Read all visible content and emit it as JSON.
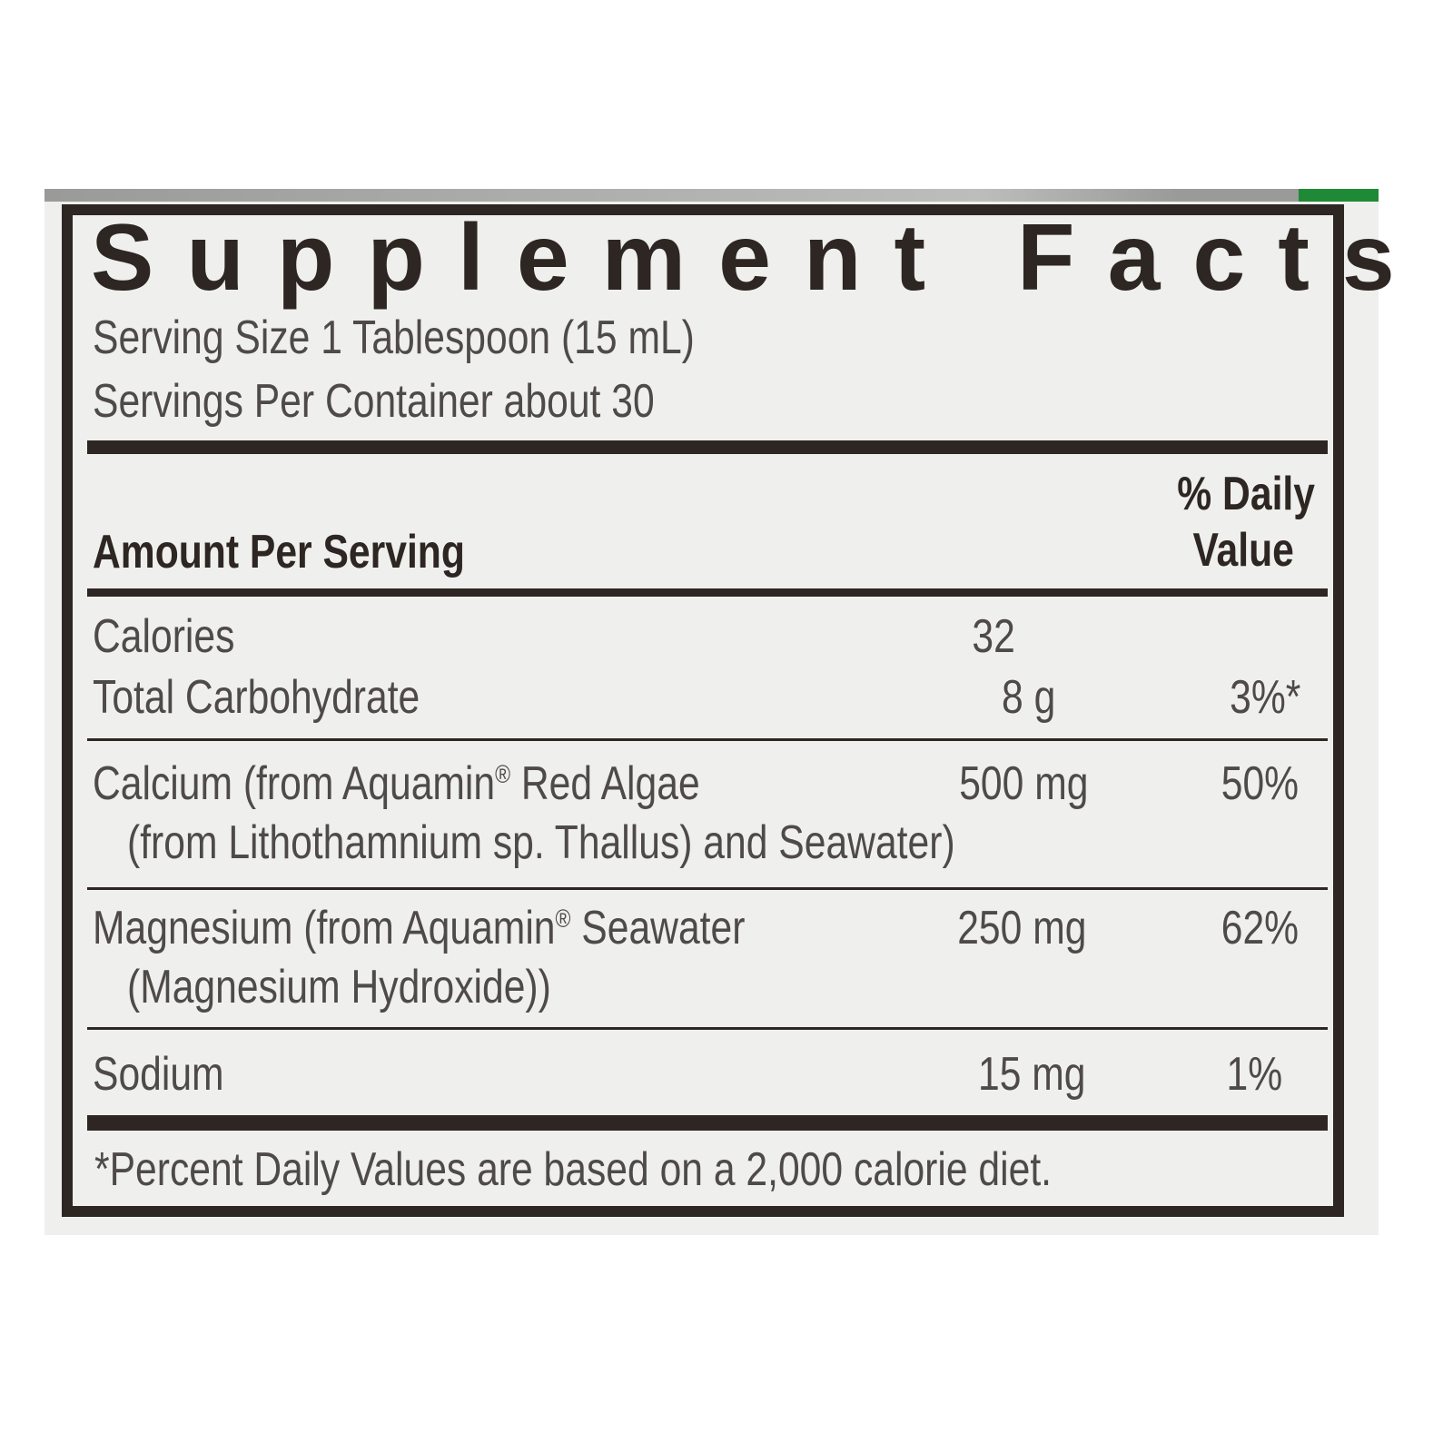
{
  "title": "Supplement Facts",
  "serving_size": "Serving Size 1 Tablespoon (15 mL)",
  "servings_per_container": "Servings Per Container about 30",
  "header": {
    "amount_per_serving": "Amount Per Serving",
    "dv_line1": "% Daily",
    "dv_line2": "Value"
  },
  "rows": [
    {
      "name": "Calories",
      "amount": "32",
      "dv": ""
    },
    {
      "name": "Total Carbohydrate",
      "amount": "8 g",
      "dv": "3%*"
    },
    {
      "name_a": "Calcium (from Aquamin",
      "reg": "®",
      "name_b": " Red Algae",
      "name_line2": "(from Lithothamnium sp. Thallus) and Seawater)",
      "amount": "500 mg",
      "dv": "50%"
    },
    {
      "name_a": "Magnesium (from Aquamin",
      "reg": "®",
      "name_b": " Seawater",
      "name_line2": "(Magnesium Hydroxide))",
      "amount": "250 mg",
      "dv": "62%"
    },
    {
      "name": "Sodium",
      "amount": "15 mg",
      "dv": "1%"
    }
  ],
  "footnote": "*Percent Daily Values are based on a 2,000 calorie diet.",
  "colors": {
    "ink": "#2d2622",
    "text": "#4e4a47",
    "background": "#efefed",
    "accent_green": "#1e8a35"
  }
}
